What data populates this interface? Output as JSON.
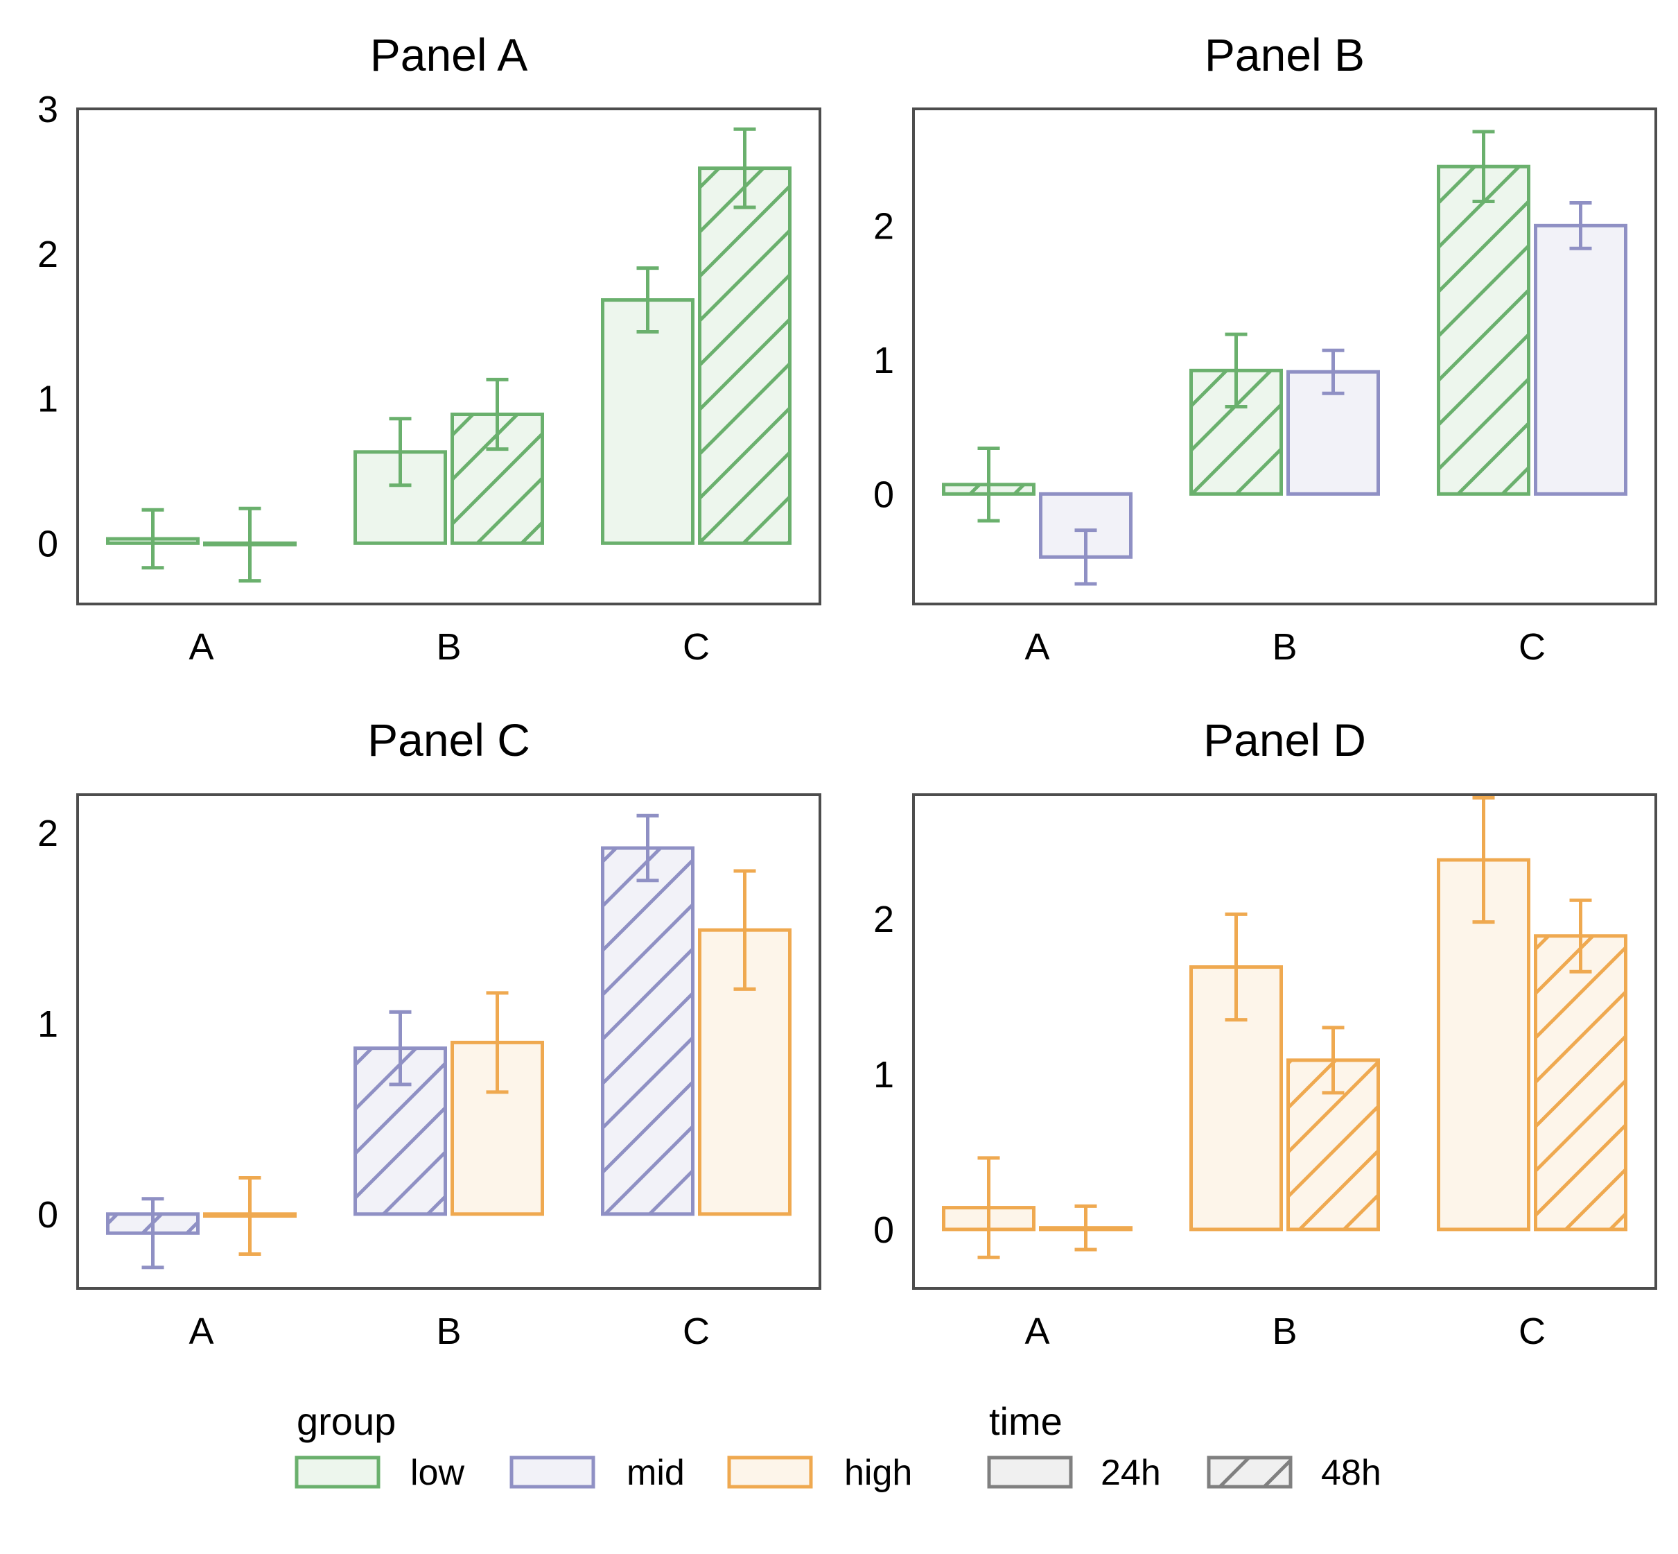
{
  "colors": {
    "low": "#6ab06d",
    "mid": "#8f90c4",
    "high": "#efa950",
    "neutral": "#808080",
    "axes": "#4d4d4d"
  },
  "legend": {
    "group_title": "group",
    "group_items": [
      {
        "key": "low",
        "label": "low",
        "color": "#6ab06d"
      },
      {
        "key": "mid",
        "label": "mid",
        "color": "#8f90c4"
      },
      {
        "key": "high",
        "label": "high",
        "color": "#efa950"
      }
    ],
    "time_title": "time",
    "time_items": [
      {
        "key": "24h",
        "label": "24h",
        "hatch": false
      },
      {
        "key": "48h",
        "label": "48h",
        "hatch": true
      }
    ]
  },
  "chart_data": [
    {
      "type": "bar",
      "title": "Panel A",
      "categories": [
        "A",
        "B",
        "C"
      ],
      "ylim": [
        -0.42,
        3.0
      ],
      "yticks": [
        0,
        1,
        2,
        3
      ],
      "series": [
        {
          "group": "low",
          "time": "24h",
          "values": [
            0.03,
            0.63,
            1.68
          ],
          "errors": [
            0.2,
            0.23,
            0.22
          ]
        },
        {
          "group": "low",
          "time": "48h",
          "values": [
            -0.01,
            0.89,
            2.59
          ],
          "errors": [
            0.25,
            0.24,
            0.27
          ]
        }
      ]
    },
    {
      "type": "bar",
      "title": "Panel B",
      "categories": [
        "A",
        "B",
        "C"
      ],
      "ylim": [
        -0.82,
        2.87
      ],
      "yticks": [
        0,
        1,
        2
      ],
      "series": [
        {
          "group": "low",
          "time": "48h",
          "values": [
            0.07,
            0.92,
            2.44
          ],
          "errors": [
            0.27,
            0.27,
            0.26
          ]
        },
        {
          "group": "mid",
          "time": "24h",
          "values": [
            -0.47,
            0.91,
            2.0
          ],
          "errors": [
            0.2,
            0.16,
            0.17
          ]
        }
      ]
    },
    {
      "type": "bar",
      "title": "Panel C",
      "categories": [
        "A",
        "B",
        "C"
      ],
      "ylim": [
        -0.39,
        2.2
      ],
      "yticks": [
        0,
        1,
        2
      ],
      "series": [
        {
          "group": "mid",
          "time": "48h",
          "values": [
            -0.1,
            0.87,
            1.92
          ],
          "errors": [
            0.18,
            0.19,
            0.17
          ]
        },
        {
          "group": "high",
          "time": "24h",
          "values": [
            -0.01,
            0.9,
            1.49
          ],
          "errors": [
            0.2,
            0.26,
            0.31
          ]
        }
      ]
    },
    {
      "type": "bar",
      "title": "Panel D",
      "categories": [
        "A",
        "B",
        "C"
      ],
      "ylim": [
        -0.38,
        2.8
      ],
      "yticks": [
        0,
        1,
        2
      ],
      "series": [
        {
          "group": "high",
          "time": "24h",
          "values": [
            0.14,
            1.69,
            2.38
          ],
          "errors": [
            0.32,
            0.34,
            0.4
          ]
        },
        {
          "group": "high",
          "time": "48h",
          "values": [
            0.01,
            1.09,
            1.89
          ],
          "errors": [
            0.14,
            0.21,
            0.23
          ]
        }
      ]
    }
  ]
}
